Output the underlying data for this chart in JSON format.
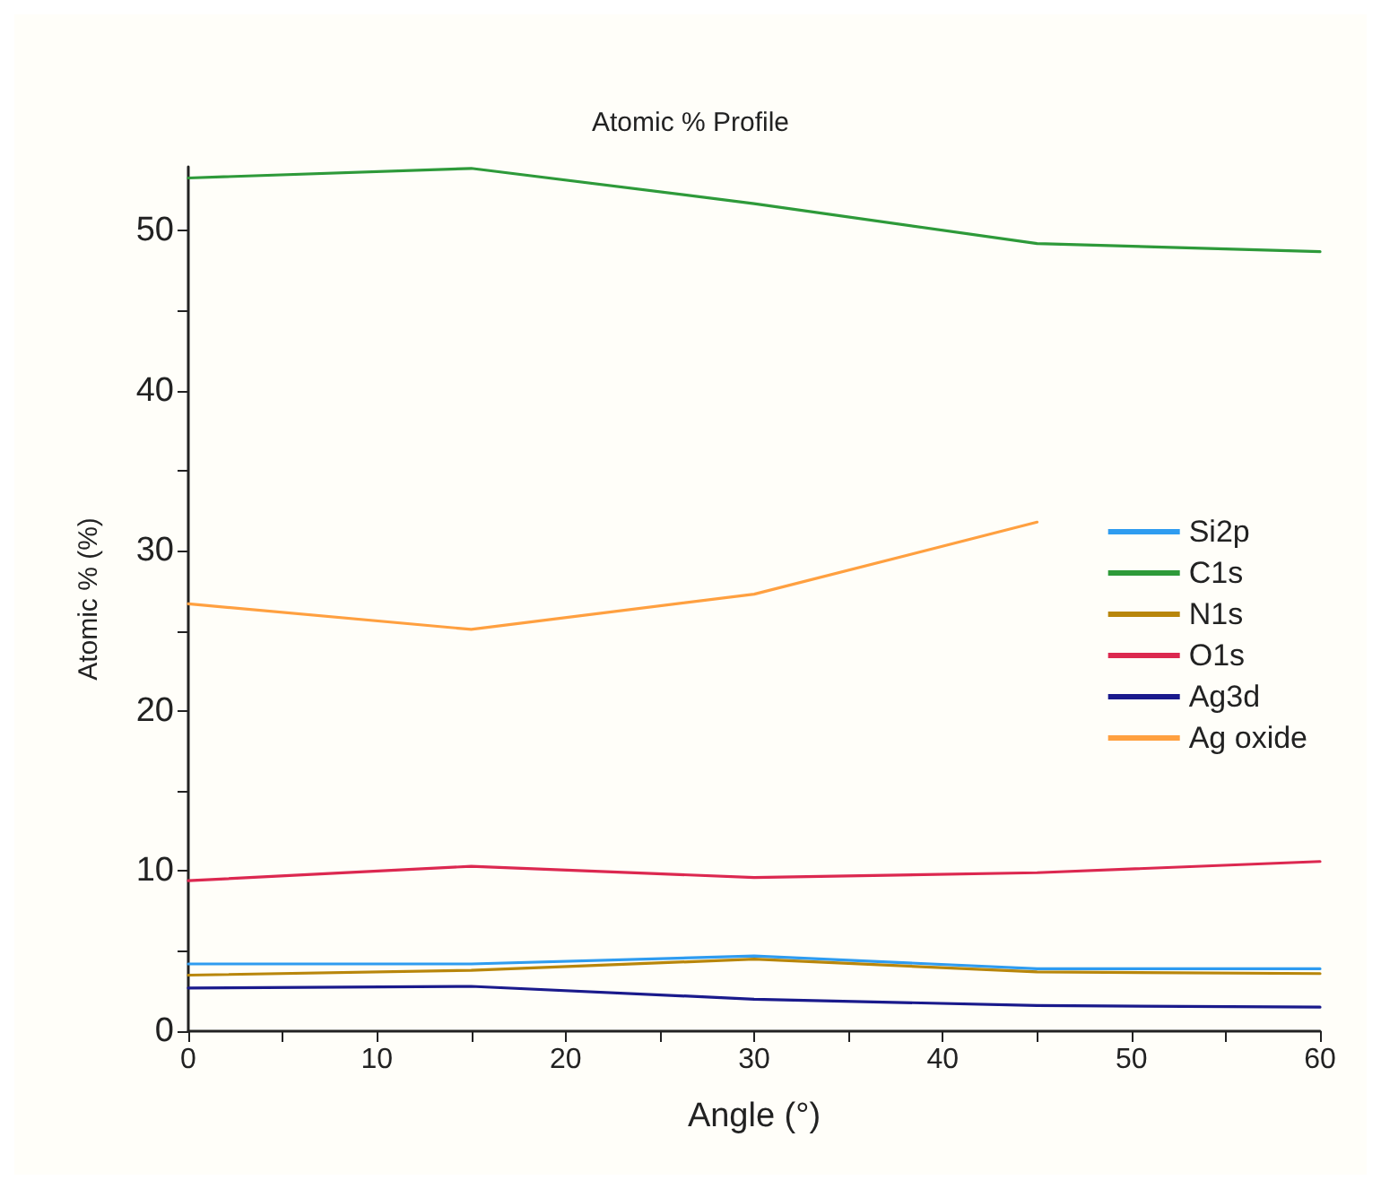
{
  "chart_data": {
    "type": "line",
    "title": "Atomic % Profile",
    "xlabel": "Angle (°)",
    "ylabel": "Atomic % (%)",
    "x": [
      0,
      15,
      30,
      45,
      60
    ],
    "xlim": [
      0,
      60
    ],
    "xticks": [
      0,
      {
        "value": 5,
        "label": null
      },
      10,
      {
        "value": 15,
        "label": null
      },
      20,
      {
        "value": 25,
        "label": null
      },
      30,
      {
        "value": 35,
        "label": null
      },
      40,
      {
        "value": 45,
        "label": null
      },
      50,
      {
        "value": 55,
        "label": null
      },
      60
    ],
    "ylim": [
      0,
      54
    ],
    "yticks": [
      0,
      {
        "value": 5,
        "label": null
      },
      10,
      {
        "value": 15,
        "label": null
      },
      20,
      {
        "value": 25,
        "label": null
      },
      30,
      {
        "value": 35,
        "label": null
      },
      40,
      {
        "value": 45,
        "label": null
      },
      50
    ],
    "grid": false,
    "legend": "right",
    "marker": "none",
    "line_style": "solid",
    "series": [
      {
        "name": "Si2p",
        "color": "#2f9cf0",
        "values": [
          4.2,
          4.2,
          4.7,
          3.9,
          3.9
        ]
      },
      {
        "name": "C1s",
        "color": "#2e9a3a",
        "values": [
          53.3,
          53.9,
          51.7,
          49.2,
          48.7
        ]
      },
      {
        "name": "N1s",
        "color": "#b8860b",
        "values": [
          3.5,
          3.8,
          4.5,
          3.7,
          3.6
        ]
      },
      {
        "name": "O1s",
        "color": "#dc2850",
        "values": [
          9.4,
          10.3,
          9.6,
          9.9,
          10.6
        ]
      },
      {
        "name": "Ag3d",
        "color": "#1a1a8c",
        "values": [
          2.7,
          2.8,
          2.0,
          1.6,
          1.5
        ]
      },
      {
        "name": "Ag oxide",
        "color": "#ffa040",
        "values": [
          26.7,
          25.1,
          27.3,
          31.8,
          null
        ]
      }
    ]
  }
}
